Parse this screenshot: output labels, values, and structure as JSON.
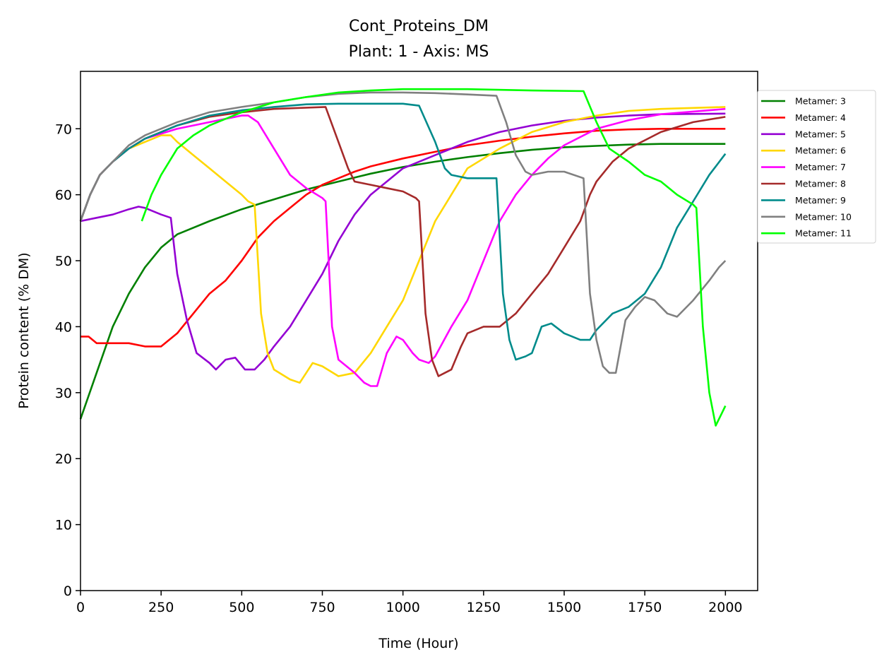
{
  "chart_data": {
    "type": "line",
    "title": "Cont_Proteins_DM",
    "subtitle": "Plant: 1 - Axis: MS",
    "xlabel": "Time (Hour)",
    "ylabel": "Protein content (% DM)",
    "xlim": [
      0,
      2100
    ],
    "ylim": [
      0,
      78.7
    ],
    "xticks": [
      0,
      250,
      500,
      750,
      1000,
      1250,
      1500,
      1750,
      2000
    ],
    "yticks": [
      0,
      10,
      20,
      30,
      40,
      50,
      60,
      70
    ],
    "grid": false,
    "legend_position": "outside-right-top",
    "series": [
      {
        "name": "Metamer: 3",
        "color": "#008000",
        "points": [
          [
            0,
            26
          ],
          [
            50,
            33
          ],
          [
            100,
            40
          ],
          [
            150,
            45
          ],
          [
            200,
            49
          ],
          [
            250,
            52
          ],
          [
            300,
            54
          ],
          [
            400,
            56
          ],
          [
            500,
            57.8
          ],
          [
            600,
            59.3
          ],
          [
            700,
            60.8
          ],
          [
            800,
            62
          ],
          [
            900,
            63.2
          ],
          [
            1000,
            64.2
          ],
          [
            1100,
            65
          ],
          [
            1200,
            65.7
          ],
          [
            1300,
            66.3
          ],
          [
            1400,
            66.8
          ],
          [
            1500,
            67.2
          ],
          [
            1600,
            67.4
          ],
          [
            1700,
            67.6
          ],
          [
            1800,
            67.7
          ],
          [
            2000,
            67.7
          ]
        ]
      },
      {
        "name": "Metamer: 4",
        "color": "#ff0000",
        "points": [
          [
            0,
            38.5
          ],
          [
            25,
            38.5
          ],
          [
            50,
            37.5
          ],
          [
            100,
            37.5
          ],
          [
            150,
            37.5
          ],
          [
            200,
            37
          ],
          [
            250,
            37
          ],
          [
            300,
            39
          ],
          [
            350,
            42
          ],
          [
            400,
            45
          ],
          [
            450,
            47
          ],
          [
            500,
            50
          ],
          [
            550,
            53.5
          ],
          [
            600,
            56
          ],
          [
            650,
            58
          ],
          [
            700,
            60
          ],
          [
            750,
            61.5
          ],
          [
            800,
            62.5
          ],
          [
            850,
            63.5
          ],
          [
            900,
            64.3
          ],
          [
            1000,
            65.5
          ],
          [
            1100,
            66.5
          ],
          [
            1200,
            67.5
          ],
          [
            1300,
            68.2
          ],
          [
            1400,
            68.8
          ],
          [
            1500,
            69.3
          ],
          [
            1600,
            69.7
          ],
          [
            1700,
            69.9
          ],
          [
            1800,
            70
          ],
          [
            2000,
            70
          ]
        ]
      },
      {
        "name": "Metamer: 5",
        "color": "#9400d3",
        "points": [
          [
            0,
            56
          ],
          [
            50,
            56.5
          ],
          [
            100,
            57
          ],
          [
            150,
            57.8
          ],
          [
            180,
            58.2
          ],
          [
            200,
            58
          ],
          [
            250,
            57
          ],
          [
            280,
            56.5
          ],
          [
            300,
            48
          ],
          [
            330,
            41
          ],
          [
            360,
            36
          ],
          [
            400,
            34.5
          ],
          [
            420,
            33.5
          ],
          [
            450,
            35
          ],
          [
            480,
            35.3
          ],
          [
            510,
            33.5
          ],
          [
            540,
            33.5
          ],
          [
            570,
            35
          ],
          [
            600,
            37
          ],
          [
            650,
            40
          ],
          [
            700,
            44
          ],
          [
            750,
            48
          ],
          [
            800,
            53
          ],
          [
            850,
            57
          ],
          [
            900,
            60
          ],
          [
            950,
            62
          ],
          [
            1000,
            64
          ],
          [
            1100,
            66
          ],
          [
            1200,
            68
          ],
          [
            1300,
            69.5
          ],
          [
            1400,
            70.5
          ],
          [
            1500,
            71.2
          ],
          [
            1600,
            71.7
          ],
          [
            1700,
            72
          ],
          [
            1800,
            72.2
          ],
          [
            2000,
            72.3
          ]
        ]
      },
      {
        "name": "Metamer: 6",
        "color": "#ffd700",
        "points": [
          [
            0,
            56
          ],
          [
            30,
            60
          ],
          [
            60,
            63
          ],
          [
            100,
            65
          ],
          [
            150,
            67
          ],
          [
            200,
            68
          ],
          [
            250,
            69
          ],
          [
            280,
            69
          ],
          [
            300,
            68
          ],
          [
            350,
            66
          ],
          [
            400,
            64
          ],
          [
            450,
            62
          ],
          [
            500,
            60
          ],
          [
            520,
            59
          ],
          [
            540,
            58.5
          ],
          [
            560,
            42
          ],
          [
            580,
            36
          ],
          [
            600,
            33.5
          ],
          [
            650,
            32
          ],
          [
            680,
            31.5
          ],
          [
            700,
            33
          ],
          [
            720,
            34.5
          ],
          [
            750,
            34
          ],
          [
            800,
            32.5
          ],
          [
            850,
            33
          ],
          [
            900,
            36
          ],
          [
            950,
            40
          ],
          [
            1000,
            44
          ],
          [
            1050,
            50
          ],
          [
            1100,
            56
          ],
          [
            1150,
            60
          ],
          [
            1200,
            64
          ],
          [
            1300,
            67
          ],
          [
            1400,
            69.5
          ],
          [
            1500,
            71
          ],
          [
            1600,
            72
          ],
          [
            1700,
            72.7
          ],
          [
            1800,
            73
          ],
          [
            2000,
            73.3
          ]
        ]
      },
      {
        "name": "Metamer: 7",
        "color": "#ff00ff",
        "points": [
          [
            0,
            56
          ],
          [
            30,
            60
          ],
          [
            60,
            63
          ],
          [
            100,
            65
          ],
          [
            150,
            67
          ],
          [
            200,
            68.5
          ],
          [
            300,
            70
          ],
          [
            400,
            71
          ],
          [
            450,
            71.5
          ],
          [
            500,
            72
          ],
          [
            520,
            72
          ],
          [
            550,
            71
          ],
          [
            600,
            67
          ],
          [
            650,
            63
          ],
          [
            700,
            61
          ],
          [
            750,
            59.5
          ],
          [
            760,
            59
          ],
          [
            780,
            40
          ],
          [
            800,
            35
          ],
          [
            850,
            33
          ],
          [
            880,
            31.5
          ],
          [
            900,
            31
          ],
          [
            920,
            31
          ],
          [
            950,
            36
          ],
          [
            980,
            38.5
          ],
          [
            1000,
            38
          ],
          [
            1030,
            36
          ],
          [
            1050,
            35
          ],
          [
            1080,
            34.5
          ],
          [
            1100,
            35.5
          ],
          [
            1150,
            40
          ],
          [
            1200,
            44
          ],
          [
            1250,
            50
          ],
          [
            1300,
            56
          ],
          [
            1350,
            60
          ],
          [
            1400,
            63
          ],
          [
            1450,
            65.5
          ],
          [
            1500,
            67.5
          ],
          [
            1600,
            70
          ],
          [
            1700,
            71.3
          ],
          [
            1800,
            72.2
          ],
          [
            2000,
            73
          ]
        ]
      },
      {
        "name": "Metamer: 8",
        "color": "#a52a2a",
        "points": [
          [
            0,
            56
          ],
          [
            30,
            60
          ],
          [
            60,
            63
          ],
          [
            100,
            65
          ],
          [
            150,
            67
          ],
          [
            200,
            68.5
          ],
          [
            300,
            70.5
          ],
          [
            400,
            71.8
          ],
          [
            500,
            72.5
          ],
          [
            600,
            73
          ],
          [
            700,
            73.2
          ],
          [
            760,
            73.3
          ],
          [
            800,
            68
          ],
          [
            830,
            64
          ],
          [
            850,
            62
          ],
          [
            900,
            61.5
          ],
          [
            950,
            61
          ],
          [
            1000,
            60.5
          ],
          [
            1040,
            59.5
          ],
          [
            1050,
            59
          ],
          [
            1070,
            42
          ],
          [
            1090,
            35
          ],
          [
            1110,
            32.5
          ],
          [
            1130,
            33
          ],
          [
            1150,
            33.5
          ],
          [
            1180,
            37
          ],
          [
            1200,
            39
          ],
          [
            1250,
            40
          ],
          [
            1300,
            40
          ],
          [
            1350,
            42
          ],
          [
            1400,
            45
          ],
          [
            1450,
            48
          ],
          [
            1500,
            52
          ],
          [
            1550,
            56
          ],
          [
            1580,
            60
          ],
          [
            1600,
            62
          ],
          [
            1650,
            65
          ],
          [
            1700,
            67
          ],
          [
            1800,
            69.5
          ],
          [
            1900,
            71
          ],
          [
            2000,
            71.8
          ]
        ]
      },
      {
        "name": "Metamer: 9",
        "color": "#008b8b",
        "points": [
          [
            0,
            56
          ],
          [
            30,
            60
          ],
          [
            60,
            63
          ],
          [
            100,
            65
          ],
          [
            150,
            67
          ],
          [
            200,
            68.5
          ],
          [
            300,
            70.5
          ],
          [
            400,
            72
          ],
          [
            500,
            72.8
          ],
          [
            600,
            73.3
          ],
          [
            700,
            73.7
          ],
          [
            800,
            73.8
          ],
          [
            900,
            73.8
          ],
          [
            1000,
            73.8
          ],
          [
            1050,
            73.5
          ],
          [
            1100,
            68
          ],
          [
            1130,
            64
          ],
          [
            1150,
            63
          ],
          [
            1200,
            62.5
          ],
          [
            1250,
            62.5
          ],
          [
            1290,
            62.5
          ],
          [
            1310,
            45
          ],
          [
            1330,
            38
          ],
          [
            1350,
            35
          ],
          [
            1380,
            35.5
          ],
          [
            1400,
            36
          ],
          [
            1430,
            40
          ],
          [
            1460,
            40.5
          ],
          [
            1500,
            39
          ],
          [
            1550,
            38
          ],
          [
            1580,
            38
          ],
          [
            1600,
            39.5
          ],
          [
            1650,
            42
          ],
          [
            1700,
            43
          ],
          [
            1750,
            45
          ],
          [
            1800,
            49
          ],
          [
            1850,
            55
          ],
          [
            1900,
            59
          ],
          [
            1950,
            63
          ],
          [
            2000,
            66.2
          ]
        ]
      },
      {
        "name": "Metamer: 10",
        "color": "#808080",
        "points": [
          [
            0,
            56
          ],
          [
            30,
            60
          ],
          [
            60,
            63
          ],
          [
            100,
            65
          ],
          [
            150,
            67.5
          ],
          [
            200,
            69
          ],
          [
            300,
            71
          ],
          [
            400,
            72.5
          ],
          [
            500,
            73.3
          ],
          [
            600,
            74
          ],
          [
            700,
            74.8
          ],
          [
            800,
            75.3
          ],
          [
            900,
            75.5
          ],
          [
            1000,
            75.5
          ],
          [
            1100,
            75.4
          ],
          [
            1200,
            75.2
          ],
          [
            1290,
            75
          ],
          [
            1320,
            71
          ],
          [
            1350,
            66
          ],
          [
            1380,
            63.5
          ],
          [
            1400,
            63
          ],
          [
            1450,
            63.5
          ],
          [
            1500,
            63.5
          ],
          [
            1560,
            62.5
          ],
          [
            1580,
            45
          ],
          [
            1600,
            38
          ],
          [
            1620,
            34
          ],
          [
            1640,
            33
          ],
          [
            1660,
            33
          ],
          [
            1690,
            41
          ],
          [
            1720,
            43
          ],
          [
            1750,
            44.5
          ],
          [
            1780,
            44
          ],
          [
            1820,
            42
          ],
          [
            1850,
            41.5
          ],
          [
            1900,
            44
          ],
          [
            1950,
            47
          ],
          [
            1980,
            49
          ],
          [
            2000,
            50
          ]
        ]
      },
      {
        "name": "Metamer: 11",
        "color": "#00ff00",
        "points": [
          [
            190,
            56
          ],
          [
            220,
            60
          ],
          [
            250,
            63
          ],
          [
            300,
            67
          ],
          [
            350,
            69
          ],
          [
            400,
            70.5
          ],
          [
            500,
            72.5
          ],
          [
            600,
            74
          ],
          [
            700,
            74.8
          ],
          [
            800,
            75.5
          ],
          [
            900,
            75.8
          ],
          [
            1000,
            76
          ],
          [
            1200,
            76
          ],
          [
            1400,
            75.8
          ],
          [
            1560,
            75.7
          ],
          [
            1600,
            71
          ],
          [
            1640,
            67
          ],
          [
            1700,
            65
          ],
          [
            1750,
            63
          ],
          [
            1800,
            62
          ],
          [
            1850,
            60
          ],
          [
            1900,
            58.5
          ],
          [
            1910,
            58
          ],
          [
            1930,
            40
          ],
          [
            1950,
            30
          ],
          [
            1970,
            25
          ],
          [
            1990,
            27
          ],
          [
            2000,
            28
          ]
        ]
      }
    ]
  }
}
